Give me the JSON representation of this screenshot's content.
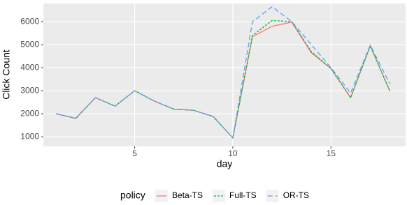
{
  "chart_data": {
    "type": "line",
    "x_label": "day",
    "y_label": "Click Count",
    "legend_title": "policy",
    "legend_position": "bottom",
    "grid": true,
    "x": [
      1,
      2,
      3,
      4,
      5,
      6,
      7,
      8,
      9,
      10,
      11,
      12,
      13,
      14,
      15,
      16,
      17,
      18
    ],
    "series": [
      {
        "name": "Beta-TS",
        "color": "#F8766D",
        "dash": "solid",
        "values": [
          2000,
          1800,
          2700,
          2330,
          3000,
          2550,
          2200,
          2150,
          1880,
          950,
          5350,
          5800,
          5980,
          4650,
          3960,
          2700,
          4950,
          2980
        ]
      },
      {
        "name": "Full-TS",
        "color": "#00BA38",
        "dash": "dotted",
        "values": [
          2000,
          1800,
          2700,
          2330,
          3000,
          2550,
          2200,
          2150,
          1880,
          950,
          5400,
          6050,
          6000,
          4700,
          3960,
          2700,
          4950,
          2980
        ]
      },
      {
        "name": "OR-TS",
        "color": "#619CFF",
        "dash": "dashed",
        "values": [
          2000,
          1800,
          2700,
          2330,
          3000,
          2550,
          2200,
          2150,
          1880,
          950,
          6000,
          6650,
          6000,
          5000,
          4000,
          2900,
          4980,
          3300
        ]
      }
    ],
    "xlim": [
      0.35,
      18.8
    ],
    "xticks": [
      5,
      10,
      15
    ],
    "ylim": [
      580,
      6790
    ],
    "yticks": [
      1000,
      2000,
      3000,
      4000,
      5000,
      6000
    ]
  }
}
